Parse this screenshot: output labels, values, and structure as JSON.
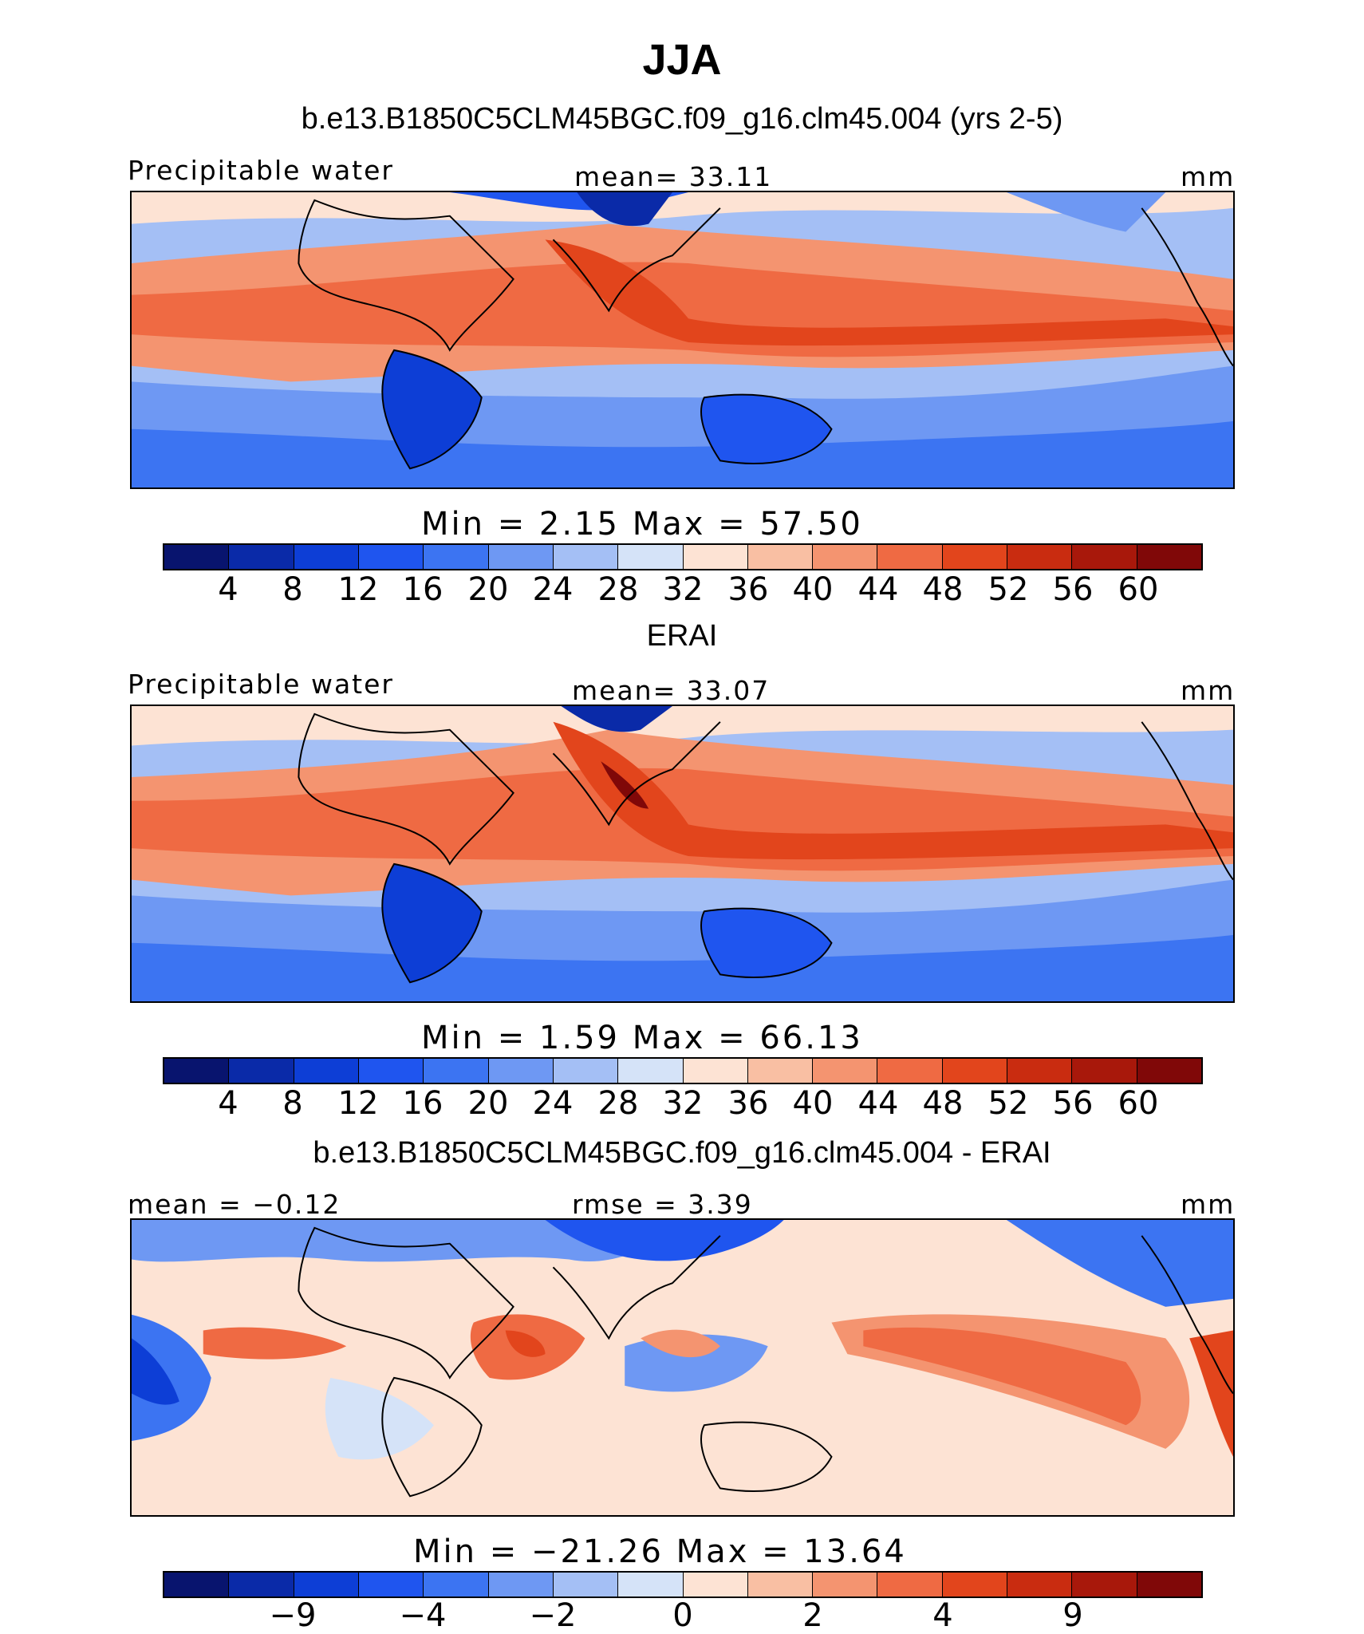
{
  "figure": {
    "title": "JJA"
  },
  "colors": {
    "bluered_14": [
      "#08146e",
      "#0a2aa8",
      "#0d3ed6",
      "#1f55ef",
      "#3c74f2",
      "#6e98f3",
      "#a4bff5",
      "#d5e3f8",
      "#fde3d4",
      "#f9bfa3",
      "#f49470",
      "#ef6a43",
      "#e2451c",
      "#c92c10",
      "#a8180b",
      "#800808"
    ],
    "diff_16": [
      "#08146e",
      "#0a2aa8",
      "#0d3ed6",
      "#1f55ef",
      "#3c74f2",
      "#6e98f3",
      "#a4bff5",
      "#d5e3f8",
      "#fde3d4",
      "#f9bfa3",
      "#f49470",
      "#ef6a43",
      "#e2451c",
      "#c92c10",
      "#a8180b",
      "#800808"
    ]
  },
  "chart_data": [
    {
      "type": "heatmap",
      "panel_title": "b.e13.B1850C5CLM45BGC.f09_g16.clm45.004 (yrs 2-5)",
      "left_label": "Precipitable water",
      "center_label": "mean=   33.11",
      "units": "mm",
      "min_max": "Min  =     2.15  Max  =    57.50",
      "levels": [
        "4",
        "8",
        "12",
        "16",
        "20",
        "24",
        "28",
        "32",
        "36",
        "40",
        "44",
        "48",
        "52",
        "56",
        "60"
      ],
      "mean": 33.11,
      "min": 2.15,
      "max": 57.5
    },
    {
      "type": "heatmap",
      "panel_title": "ERAI",
      "left_label": "Precipitable water",
      "center_label": "mean=   33.07",
      "units": "mm",
      "min_max": "Min  =     1.59  Max  =    66.13",
      "levels": [
        "4",
        "8",
        "12",
        "16",
        "20",
        "24",
        "28",
        "32",
        "36",
        "40",
        "44",
        "48",
        "52",
        "56",
        "60"
      ],
      "mean": 33.07,
      "min": 1.59,
      "max": 66.13
    },
    {
      "type": "heatmap",
      "panel_title": "b.e13.B1850C5CLM45BGC.f09_g16.clm45.004 - ERAI",
      "left_label": "mean  =   −0.12",
      "center_label": "rmse  =    3.39",
      "units": "mm",
      "min_max": "Min  =  −21.26  Max  =    13.64",
      "levels": [
        "−9",
        "−4",
        "−2",
        "0",
        "2",
        "4",
        "9"
      ],
      "mean": -0.12,
      "rmse": 3.39,
      "min": -21.26,
      "max": 13.64
    }
  ]
}
